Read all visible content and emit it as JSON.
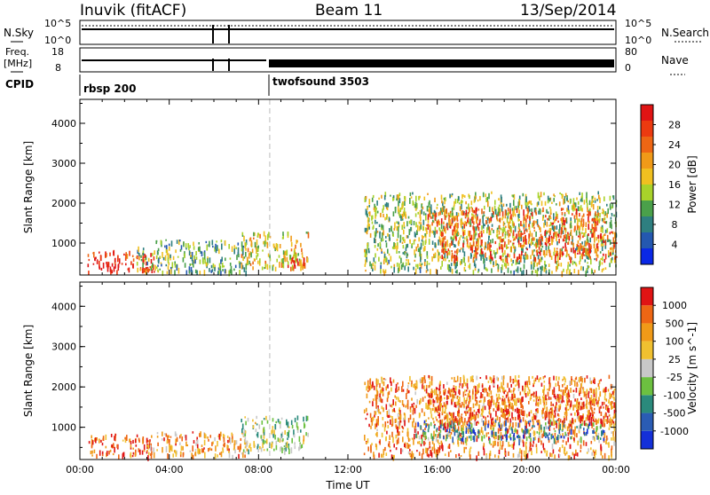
{
  "header": {
    "station": "Inuvik (fitACF)",
    "beam": "Beam 11",
    "date": "13/Sep/2014"
  },
  "top_panels": {
    "nsky": {
      "label": "N.Sky",
      "tick_top": "10^5",
      "tick_bottom": "10^0",
      "right_label": "N.Search",
      "right_tick_top": "10^5",
      "right_tick_bottom": "10^0"
    },
    "freq": {
      "label_line1": "Freq.",
      "label_line2": "[MHz]",
      "tick_top": "18",
      "tick_bottom": "8",
      "right_label": "Nave",
      "right_tick_top": "80",
      "right_tick_bottom": "0"
    },
    "cpid": {
      "label": "CPID",
      "segments": [
        {
          "name": "rbsp 200",
          "start_hour": 0
        },
        {
          "name": "twofsound 3503",
          "start_hour": 8.5
        }
      ]
    }
  },
  "chart_data": [
    {
      "type": "heatmap",
      "panel": "power",
      "ylabel": "Slant Range [km]",
      "yticks": [
        "1000",
        "2000",
        "3000",
        "4000"
      ],
      "ylim": [
        200,
        4600
      ],
      "xlim_hours": [
        0,
        24
      ],
      "colorbar": {
        "label": "Power [dB]",
        "tick_labels": [
          "4",
          "8",
          "12",
          "16",
          "20",
          "24",
          "28"
        ],
        "colors": [
          "#0a28e6",
          "#2458b0",
          "#2e7f80",
          "#4aa04a",
          "#a8d22a",
          "#f0c020",
          "#f09a18",
          "#ee6614",
          "#ec3a10",
          "#e01414"
        ]
      },
      "regions": [
        {
          "start": 0.3,
          "end": 3.3,
          "low": 300,
          "high": 850,
          "level": 0.88
        },
        {
          "start": 2.5,
          "end": 7.5,
          "low": 300,
          "high": 1100,
          "level": 0.35
        },
        {
          "start": 7.2,
          "end": 10.2,
          "low": 400,
          "high": 1300,
          "level": 0.55
        },
        {
          "start": 9.2,
          "end": 10.1,
          "low": 350,
          "high": 700,
          "level": 0.88
        },
        {
          "start": 12.7,
          "end": 24,
          "low": 300,
          "high": 2300,
          "level": 0.42
        },
        {
          "start": 15.5,
          "end": 23.5,
          "low": 1300,
          "high": 1900,
          "level": 0.72
        },
        {
          "start": 16,
          "end": 24,
          "low": 600,
          "high": 1300,
          "level": 0.8
        }
      ]
    },
    {
      "type": "heatmap",
      "panel": "velocity",
      "ylabel": "Slant Range [km]",
      "yticks": [
        "1000",
        "2000",
        "3000",
        "4000"
      ],
      "ylim": [
        200,
        4600
      ],
      "xlim_hours": [
        0,
        24
      ],
      "xticks": [
        "00:00",
        "04:00",
        "08:00",
        "12:00",
        "16:00",
        "20:00",
        "00:00"
      ],
      "xlabel": "Time UT",
      "colorbar": {
        "label": "Velocity [m s^-1]",
        "tick_labels": [
          "1000",
          "500",
          "100",
          "25",
          "-25",
          "-100",
          "-500",
          "-1000"
        ],
        "colors": [
          "#1430d8",
          "#2a5cb4",
          "#2a8a7c",
          "#6cc040",
          "#c8c8c8",
          "#f0c030",
          "#f09a18",
          "#ee6614",
          "#e01414"
        ]
      },
      "regions": [
        {
          "start": 0.3,
          "end": 3.3,
          "low": 300,
          "high": 850,
          "level": 0.85
        },
        {
          "start": 2.8,
          "end": 7.5,
          "low": 300,
          "high": 900,
          "level": 0.7
        },
        {
          "start": 7.2,
          "end": 10.2,
          "low": 450,
          "high": 1300,
          "level": 0.45
        },
        {
          "start": 12.7,
          "end": 24,
          "low": 300,
          "high": 2300,
          "level": 0.75
        },
        {
          "start": 15,
          "end": 23.5,
          "low": 700,
          "high": 1200,
          "level": 0.25
        },
        {
          "start": 15.5,
          "end": 24,
          "low": 1100,
          "high": 2000,
          "level": 0.8
        }
      ]
    }
  ],
  "event_line_hour": 8.5
}
